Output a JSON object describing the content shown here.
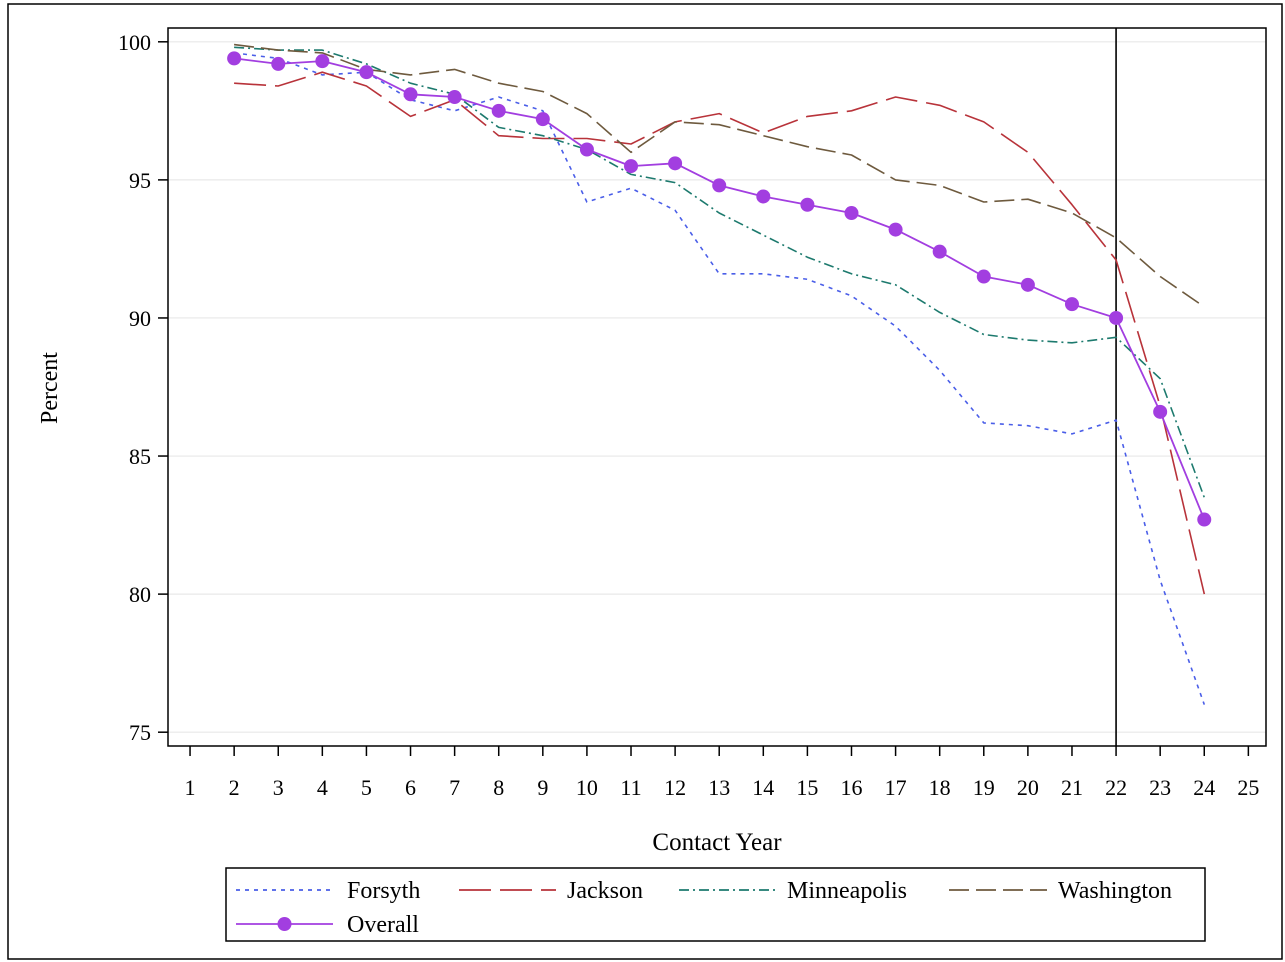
{
  "chart_data": {
    "type": "line",
    "title": "",
    "xlabel": "Contact Year",
    "ylabel": "Percent",
    "xlim": [
      0.5,
      25.4
    ],
    "ylim": [
      74.5,
      100.5
    ],
    "xticks": [
      1,
      2,
      3,
      4,
      5,
      6,
      7,
      8,
      9,
      10,
      11,
      12,
      13,
      14,
      15,
      16,
      17,
      18,
      19,
      20,
      21,
      22,
      23,
      24,
      25
    ],
    "yticks": [
      75,
      80,
      85,
      90,
      95,
      100
    ],
    "grid": "horizontal",
    "reference_line_x": 22,
    "legend_position": "bottom",
    "x": [
      2,
      3,
      4,
      5,
      6,
      7,
      8,
      9,
      10,
      11,
      12,
      13,
      14,
      15,
      16,
      17,
      18,
      19,
      20,
      21,
      22,
      23,
      24
    ],
    "series": [
      {
        "name": "Forsyth",
        "color": "#4a5ee8",
        "dash": "4,5",
        "marker": false,
        "values": [
          99.6,
          99.4,
          98.8,
          98.9,
          97.9,
          97.5,
          98.0,
          97.5,
          94.2,
          94.7,
          93.9,
          91.6,
          91.6,
          91.4,
          90.8,
          89.7,
          88.1,
          86.2,
          86.1,
          85.8,
          86.3,
          80.5,
          76.0
        ]
      },
      {
        "name": "Jackson",
        "color": "#b8333a",
        "dash": "32,9",
        "marker": false,
        "values": [
          98.5,
          98.4,
          98.9,
          98.4,
          97.3,
          97.9,
          96.6,
          96.5,
          96.5,
          96.3,
          97.1,
          97.4,
          96.7,
          97.3,
          97.5,
          98.0,
          97.7,
          97.1,
          96.0,
          94.1,
          92.1,
          86.8,
          80.0
        ]
      },
      {
        "name": "Minneapolis",
        "color": "#1d7a6e",
        "dash": "10,4,2,4",
        "marker": false,
        "values": [
          99.8,
          99.7,
          99.7,
          99.2,
          98.5,
          98.1,
          96.9,
          96.6,
          96.1,
          95.2,
          94.9,
          93.8,
          93.0,
          92.2,
          91.6,
          91.2,
          90.2,
          89.4,
          89.2,
          89.1,
          89.3,
          87.8,
          83.5
        ]
      },
      {
        "name": "Washington",
        "color": "#6e5a3e",
        "dash": "20,7",
        "marker": false,
        "values": [
          99.9,
          99.7,
          99.6,
          99.0,
          98.8,
          99.0,
          98.5,
          98.2,
          97.4,
          96.0,
          97.1,
          97.0,
          96.6,
          96.2,
          95.9,
          95.0,
          94.8,
          94.2,
          94.3,
          93.8,
          92.9,
          91.5,
          90.4
        ]
      },
      {
        "name": "Overall",
        "color": "#a23ee0",
        "dash": "",
        "marker": true,
        "values": [
          99.4,
          99.2,
          99.3,
          98.9,
          98.1,
          98.0,
          97.5,
          97.2,
          96.1,
          95.5,
          95.6,
          94.8,
          94.4,
          94.1,
          93.8,
          93.2,
          92.4,
          91.5,
          91.2,
          90.5,
          90.0,
          86.6,
          82.7
        ]
      }
    ]
  }
}
